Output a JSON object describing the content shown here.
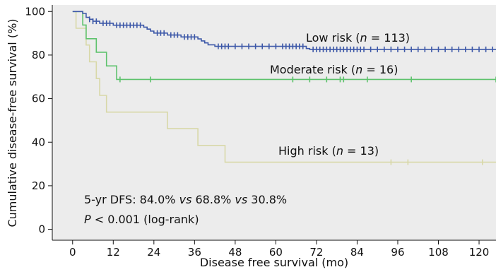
{
  "chart_data": {
    "type": "line",
    "step": true,
    "xlabel": "Disease free survival (mo)",
    "ylabel": "Cumulative disease-free survival (%)",
    "xlim": [
      -6,
      125
    ],
    "ylim": [
      -5,
      103
    ],
    "x_ticks": [
      "0",
      "12",
      "24",
      "36",
      "48",
      "60",
      "72",
      "84",
      "96",
      "108",
      "120"
    ],
    "y_ticks": [
      "0",
      "20",
      "40",
      "60",
      "80",
      "100"
    ],
    "grid": false,
    "legend": "none",
    "plot_background": "#ececec",
    "series": [
      {
        "name": "Low risk",
        "label_prefix": "Low risk (",
        "label_n_symbol": "n",
        "label_suffix": " = 113)",
        "color": "#3d58a8",
        "points": [
          [
            0,
            100
          ],
          [
            3,
            99.1
          ],
          [
            4,
            97.3
          ],
          [
            5,
            96.4
          ],
          [
            6,
            95.5
          ],
          [
            8,
            94.6
          ],
          [
            12,
            93.7
          ],
          [
            21,
            92.8
          ],
          [
            22,
            91.9
          ],
          [
            23,
            91
          ],
          [
            24,
            90.1
          ],
          [
            28,
            89.2
          ],
          [
            32,
            88.3
          ],
          [
            37,
            87.4
          ],
          [
            38,
            86.5
          ],
          [
            39,
            85.6
          ],
          [
            40,
            84.7
          ],
          [
            42,
            84
          ],
          [
            69,
            83
          ],
          [
            70,
            82.6
          ],
          [
            125,
            82.6
          ]
        ],
        "censor_x": [
          5,
          6,
          7,
          9,
          10,
          11,
          13,
          14,
          15,
          16,
          17,
          18,
          19,
          20,
          25,
          26,
          27,
          29,
          30,
          31,
          33,
          34,
          35,
          36,
          43,
          44,
          45,
          46,
          48,
          50,
          52,
          54,
          56,
          58,
          60,
          62,
          63,
          64,
          65,
          66,
          67,
          68,
          71,
          72,
          73,
          74,
          75,
          76,
          77,
          78,
          79,
          80,
          81,
          82,
          83,
          84,
          85,
          86,
          88,
          90,
          92,
          94,
          96,
          98,
          100,
          102,
          104,
          106,
          108,
          110,
          112,
          114,
          116,
          118,
          120,
          122,
          124
        ]
      },
      {
        "name": "Moderate risk",
        "label_prefix": "Moderate risk (",
        "label_n_symbol": "n",
        "label_suffix": " = 16)",
        "color": "#5dc26c",
        "points": [
          [
            0,
            100
          ],
          [
            3,
            93.8
          ],
          [
            4,
            87.5
          ],
          [
            7,
            81.3
          ],
          [
            10,
            75
          ],
          [
            13,
            68.8
          ],
          [
            125,
            68.8
          ]
        ],
        "censor_x": [
          14,
          23,
          65,
          70,
          75,
          79,
          80,
          87,
          100,
          125
        ]
      },
      {
        "name": "High risk",
        "label_prefix": "High risk (",
        "label_n_symbol": "n",
        "label_suffix": " = 13)",
        "color": "#d8d8a8",
        "points": [
          [
            0,
            100
          ],
          [
            1,
            92.3
          ],
          [
            4,
            84.6
          ],
          [
            5,
            76.9
          ],
          [
            7,
            69.2
          ],
          [
            8,
            61.5
          ],
          [
            10,
            53.8
          ],
          [
            28,
            46.2
          ],
          [
            37,
            38.5
          ],
          [
            45,
            30.8
          ],
          [
            125,
            30.8
          ]
        ],
        "censor_x": [
          94,
          99,
          121
        ]
      }
    ],
    "annotations": [
      {
        "parts": [
          {
            "text": "5-yr DFS: 84.0% ",
            "italic": false
          },
          {
            "text": "vs",
            "italic": true
          },
          {
            "text": " 68.8% ",
            "italic": false
          },
          {
            "text": "vs",
            "italic": true
          },
          {
            "text": " 30.8%",
            "italic": false
          }
        ]
      },
      {
        "parts": [
          {
            "text": "P",
            "italic": true
          },
          {
            "text": " < 0.001 (log-rank)",
            "italic": false
          }
        ]
      }
    ]
  }
}
